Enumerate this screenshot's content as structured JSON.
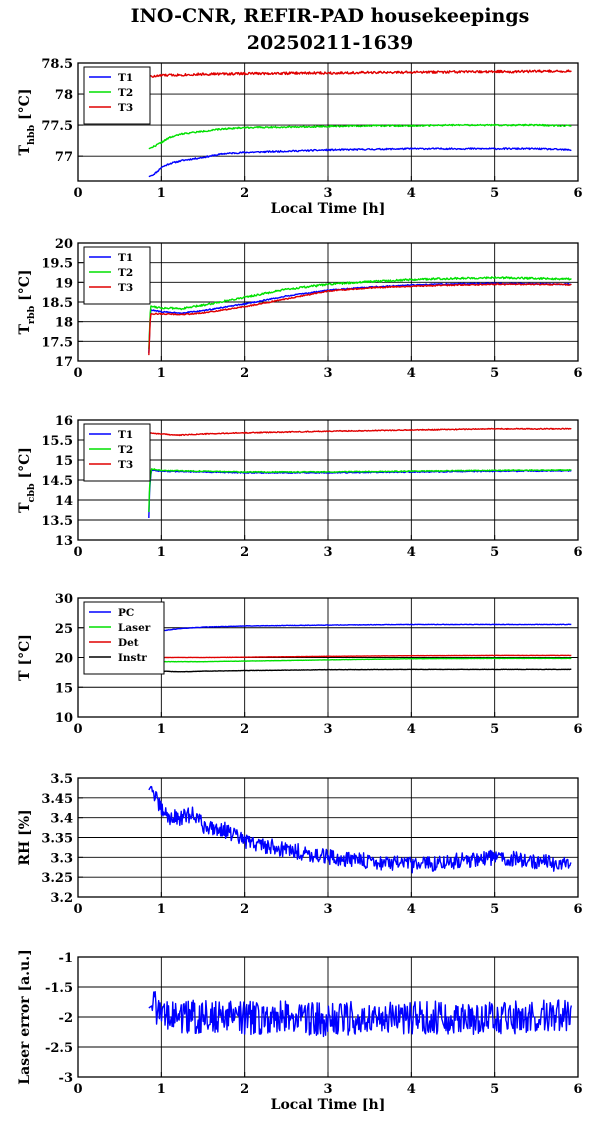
{
  "title_line1": "INO-CNR, REFIR-PAD housekeepings",
  "title_line2": "20250211-1639",
  "chart_data": [
    {
      "type": "line",
      "ylabel_main": "T",
      "ylabel_sub": "hbb",
      "ylabel_unit": " [°C]",
      "xlabel": "Local Time [h]",
      "xlim": [
        0,
        6
      ],
      "ylim": [
        76.6,
        78.5
      ],
      "xticks": [
        "0",
        "1",
        "2",
        "3",
        "4",
        "5",
        "6"
      ],
      "yticks": [
        {
          "v": 77,
          "label": "77"
        },
        {
          "v": 77.5,
          "label": "77.5"
        },
        {
          "v": 78,
          "label": "78"
        },
        {
          "v": 78.5,
          "label": "78.5"
        }
      ],
      "grid_y": [
        77,
        77.5,
        78
      ],
      "legend_placement": "top-left",
      "series": [
        {
          "name": "T1",
          "color": "#0000ff",
          "noise": 0.012,
          "seed": 11,
          "points": [
            [
              0.85,
              76.67
            ],
            [
              0.9,
              76.7
            ],
            [
              0.95,
              76.75
            ],
            [
              1.0,
              76.82
            ],
            [
              1.1,
              76.88
            ],
            [
              1.25,
              76.93
            ],
            [
              1.5,
              76.98
            ],
            [
              1.75,
              77.04
            ],
            [
              2.0,
              77.06
            ],
            [
              2.5,
              77.08
            ],
            [
              3.0,
              77.1
            ],
            [
              3.5,
              77.11
            ],
            [
              4.0,
              77.12
            ],
            [
              4.5,
              77.12
            ],
            [
              5.0,
              77.12
            ],
            [
              5.5,
              77.12
            ],
            [
              5.92,
              77.1
            ]
          ]
        },
        {
          "name": "T2",
          "color": "#00e000",
          "noise": 0.012,
          "seed": 22,
          "points": [
            [
              0.85,
              77.12
            ],
            [
              0.9,
              77.15
            ],
            [
              1.0,
              77.22
            ],
            [
              1.1,
              77.3
            ],
            [
              1.25,
              77.36
            ],
            [
              1.5,
              77.4
            ],
            [
              1.75,
              77.44
            ],
            [
              2.0,
              77.46
            ],
            [
              2.5,
              77.47
            ],
            [
              3.0,
              77.48
            ],
            [
              3.5,
              77.49
            ],
            [
              4.0,
              77.49
            ],
            [
              4.5,
              77.5
            ],
            [
              5.0,
              77.5
            ],
            [
              5.5,
              77.5
            ],
            [
              5.92,
              77.49
            ]
          ]
        },
        {
          "name": "T3",
          "color": "#e00000",
          "noise": 0.02,
          "seed": 33,
          "points": [
            [
              0.85,
              78.12
            ],
            [
              0.86,
              78.3
            ],
            [
              0.9,
              78.28
            ],
            [
              1.0,
              78.3
            ],
            [
              1.5,
              78.32
            ],
            [
              2.0,
              78.33
            ],
            [
              3.0,
              78.34
            ],
            [
              4.0,
              78.35
            ],
            [
              5.0,
              78.36
            ],
            [
              5.92,
              78.37
            ]
          ]
        }
      ]
    },
    {
      "type": "line",
      "ylabel_main": "T",
      "ylabel_sub": "rbb",
      "ylabel_unit": " [°C]",
      "xlabel": "",
      "xlim": [
        0,
        6
      ],
      "ylim": [
        17,
        20
      ],
      "xticks": [
        "0",
        "1",
        "2",
        "3",
        "4",
        "5",
        "6"
      ],
      "yticks": [
        {
          "v": 17,
          "label": "17"
        },
        {
          "v": 17.5,
          "label": "17.5"
        },
        {
          "v": 18,
          "label": "18"
        },
        {
          "v": 18.5,
          "label": "18.5"
        },
        {
          "v": 19,
          "label": "19"
        },
        {
          "v": 19.5,
          "label": "19.5"
        },
        {
          "v": 20,
          "label": "20"
        }
      ],
      "grid_y": [
        17.5,
        18,
        18.5,
        19,
        19.5
      ],
      "legend_placement": "top-left",
      "series": [
        {
          "name": "T1",
          "color": "#0000ff",
          "noise": 0.015,
          "seed": 44,
          "points": [
            [
              0.85,
              17.2
            ],
            [
              0.87,
              18.3
            ],
            [
              1.0,
              18.25
            ],
            [
              1.25,
              18.22
            ],
            [
              1.5,
              18.28
            ],
            [
              2.0,
              18.45
            ],
            [
              2.5,
              18.65
            ],
            [
              3.0,
              18.8
            ],
            [
              3.5,
              18.88
            ],
            [
              4.0,
              18.93
            ],
            [
              4.5,
              18.96
            ],
            [
              5.0,
              18.97
            ],
            [
              5.5,
              18.96
            ],
            [
              5.92,
              18.95
            ]
          ]
        },
        {
          "name": "T2",
          "color": "#00e000",
          "noise": 0.025,
          "seed": 55,
          "points": [
            [
              0.85,
              17.3
            ],
            [
              0.87,
              18.4
            ],
            [
              1.0,
              18.35
            ],
            [
              1.25,
              18.33
            ],
            [
              1.5,
              18.42
            ],
            [
              2.0,
              18.62
            ],
            [
              2.5,
              18.82
            ],
            [
              3.0,
              18.95
            ],
            [
              3.5,
              19.02
            ],
            [
              4.0,
              19.07
            ],
            [
              4.5,
              19.1
            ],
            [
              5.0,
              19.12
            ],
            [
              5.5,
              19.1
            ],
            [
              5.92,
              19.08
            ]
          ]
        },
        {
          "name": "T3",
          "color": "#e00000",
          "noise": 0.015,
          "seed": 66,
          "points": [
            [
              0.85,
              17.15
            ],
            [
              0.87,
              18.2
            ],
            [
              1.0,
              18.2
            ],
            [
              1.25,
              18.18
            ],
            [
              1.5,
              18.22
            ],
            [
              2.0,
              18.38
            ],
            [
              2.5,
              18.58
            ],
            [
              3.0,
              18.78
            ],
            [
              3.5,
              18.86
            ],
            [
              4.0,
              18.9
            ],
            [
              4.5,
              18.93
            ],
            [
              5.0,
              18.95
            ],
            [
              5.5,
              18.95
            ],
            [
              5.92,
              18.94
            ]
          ]
        }
      ]
    },
    {
      "type": "line",
      "ylabel_main": "T",
      "ylabel_sub": "cbb",
      "ylabel_unit": " [°C]",
      "xlabel": "",
      "xlim": [
        0,
        6
      ],
      "ylim": [
        13,
        16
      ],
      "xticks": [
        "0",
        "1",
        "2",
        "3",
        "4",
        "5",
        "6"
      ],
      "yticks": [
        {
          "v": 13,
          "label": "13"
        },
        {
          "v": 13.5,
          "label": "13.5"
        },
        {
          "v": 14,
          "label": "14"
        },
        {
          "v": 14.5,
          "label": "14.5"
        },
        {
          "v": 15,
          "label": "15"
        },
        {
          "v": 15.5,
          "label": "15.5"
        },
        {
          "v": 16,
          "label": "16"
        }
      ],
      "grid_y": [
        13.5,
        14,
        14.5,
        15,
        15.5
      ],
      "legend_placement": "top-left",
      "series": [
        {
          "name": "T1",
          "color": "#0000ff",
          "noise": 0.012,
          "seed": 77,
          "points": [
            [
              0.85,
              13.55
            ],
            [
              0.86,
              14.3
            ],
            [
              0.88,
              14.75
            ],
            [
              1.0,
              14.72
            ],
            [
              1.5,
              14.7
            ],
            [
              2.0,
              14.68
            ],
            [
              3.0,
              14.68
            ],
            [
              4.0,
              14.7
            ],
            [
              5.0,
              14.72
            ],
            [
              5.92,
              14.73
            ]
          ]
        },
        {
          "name": "T2",
          "color": "#00e000",
          "noise": 0.012,
          "seed": 88,
          "points": [
            [
              0.85,
              13.7
            ],
            [
              0.86,
              14.4
            ],
            [
              0.88,
              14.78
            ],
            [
              1.0,
              14.74
            ],
            [
              1.5,
              14.72
            ],
            [
              2.0,
              14.7
            ],
            [
              3.0,
              14.7
            ],
            [
              4.0,
              14.72
            ],
            [
              5.0,
              14.74
            ],
            [
              5.92,
              14.75
            ]
          ]
        },
        {
          "name": "T3",
          "color": "#e00000",
          "noise": 0.012,
          "seed": 99,
          "points": [
            [
              0.85,
              15.68
            ],
            [
              1.0,
              15.65
            ],
            [
              1.2,
              15.62
            ],
            [
              1.5,
              15.65
            ],
            [
              2.0,
              15.68
            ],
            [
              3.0,
              15.72
            ],
            [
              4.0,
              15.75
            ],
            [
              5.0,
              15.78
            ],
            [
              5.92,
              15.78
            ]
          ]
        }
      ]
    },
    {
      "type": "line",
      "ylabel_main": "T [°C]",
      "ylabel_sub": "",
      "ylabel_unit": "",
      "xlabel": "",
      "xlim": [
        0,
        6
      ],
      "ylim": [
        10,
        30
      ],
      "xticks": [
        "0",
        "1",
        "2",
        "3",
        "4",
        "5",
        "6"
      ],
      "yticks": [
        {
          "v": 10,
          "label": "10"
        },
        {
          "v": 15,
          "label": "15"
        },
        {
          "v": 20,
          "label": "20"
        },
        {
          "v": 25,
          "label": "25"
        },
        {
          "v": 30,
          "label": "30"
        }
      ],
      "grid_y": [
        15,
        20,
        25
      ],
      "legend_placement": "top-left",
      "series": [
        {
          "name": "PC",
          "color": "#0000ff",
          "noise": 0.04,
          "seed": 101,
          "points": [
            [
              0.9,
              23.8
            ],
            [
              1.0,
              24.5
            ],
            [
              1.25,
              24.9
            ],
            [
              1.5,
              25.1
            ],
            [
              2.0,
              25.3
            ],
            [
              3.0,
              25.45
            ],
            [
              4.0,
              25.55
            ],
            [
              5.0,
              25.55
            ],
            [
              5.92,
              25.55
            ]
          ]
        },
        {
          "name": "Laser",
          "color": "#00e000",
          "noise": 0.02,
          "seed": 102,
          "points": [
            [
              0.9,
              19.5
            ],
            [
              1.0,
              19.3
            ],
            [
              1.5,
              19.3
            ],
            [
              2.0,
              19.4
            ],
            [
              3.0,
              19.6
            ],
            [
              4.0,
              19.8
            ],
            [
              5.0,
              19.85
            ],
            [
              5.92,
              19.85
            ]
          ]
        },
        {
          "name": "Det",
          "color": "#e00000",
          "noise": 0.02,
          "seed": 103,
          "points": [
            [
              0.9,
              20.0
            ],
            [
              1.5,
              20.0
            ],
            [
              2.0,
              20.05
            ],
            [
              3.0,
              20.2
            ],
            [
              4.0,
              20.3
            ],
            [
              5.0,
              20.35
            ],
            [
              5.92,
              20.35
            ]
          ]
        },
        {
          "name": "Instr",
          "color": "#000000",
          "noise": 0.03,
          "seed": 104,
          "points": [
            [
              0.9,
              18.0
            ],
            [
              1.0,
              17.7
            ],
            [
              1.25,
              17.6
            ],
            [
              1.5,
              17.7
            ],
            [
              2.0,
              17.8
            ],
            [
              3.0,
              17.95
            ],
            [
              4.0,
              18.0
            ],
            [
              5.0,
              18.0
            ],
            [
              5.92,
              18.0
            ]
          ]
        }
      ]
    },
    {
      "type": "line",
      "ylabel_main": "RH [%]",
      "ylabel_sub": "",
      "ylabel_unit": "",
      "xlabel": "",
      "xlim": [
        0,
        6
      ],
      "ylim": [
        3.2,
        3.5
      ],
      "xticks": [
        "0",
        "1",
        "2",
        "3",
        "4",
        "5",
        "6"
      ],
      "yticks": [
        {
          "v": 3.2,
          "label": "3.2"
        },
        {
          "v": 3.25,
          "label": "3.25"
        },
        {
          "v": 3.3,
          "label": "3.3"
        },
        {
          "v": 3.35,
          "label": "3.35"
        },
        {
          "v": 3.4,
          "label": "3.4"
        },
        {
          "v": 3.45,
          "label": "3.45"
        },
        {
          "v": 3.5,
          "label": "3.5"
        }
      ],
      "grid_y": [
        3.25,
        3.3,
        3.35,
        3.4,
        3.45
      ],
      "legend_placement": "none",
      "series": [
        {
          "name": "",
          "color": "#0000ff",
          "noise": 0.02,
          "seed": 201,
          "points": [
            [
              0.85,
              3.47
            ],
            [
              0.88,
              3.48
            ],
            [
              0.95,
              3.44
            ],
            [
              1.0,
              3.42
            ],
            [
              1.1,
              3.4
            ],
            [
              1.25,
              3.4
            ],
            [
              1.4,
              3.41
            ],
            [
              1.5,
              3.38
            ],
            [
              1.75,
              3.37
            ],
            [
              2.0,
              3.34
            ],
            [
              2.5,
              3.32
            ],
            [
              3.0,
              3.3
            ],
            [
              3.5,
              3.29
            ],
            [
              4.0,
              3.28
            ],
            [
              4.5,
              3.29
            ],
            [
              5.0,
              3.3
            ],
            [
              5.5,
              3.29
            ],
            [
              5.92,
              3.28
            ]
          ]
        }
      ]
    },
    {
      "type": "line",
      "ylabel_main": "Laser error [a.u.]",
      "ylabel_sub": "",
      "ylabel_unit": "",
      "xlabel": "Local Time [h]",
      "xlim": [
        0,
        6
      ],
      "ylim": [
        -3,
        -1
      ],
      "xticks": [
        "0",
        "1",
        "2",
        "3",
        "4",
        "5",
        "6"
      ],
      "yticks": [
        {
          "v": -3,
          "label": "-3"
        },
        {
          "v": -2.5,
          "label": "-2.5"
        },
        {
          "v": -2,
          "label": "-2"
        },
        {
          "v": -1.5,
          "label": "-1.5"
        },
        {
          "v": -1,
          "label": "-1"
        }
      ],
      "grid_y": [
        -2.5,
        -2,
        -1.5
      ],
      "legend_placement": "none",
      "series": [
        {
          "name": "",
          "color": "#0000ff",
          "noise": 0.28,
          "seed": 301,
          "points": [
            [
              0.85,
              -1.85
            ],
            [
              0.9,
              -1.8
            ],
            [
              1.0,
              -2.0
            ],
            [
              1.5,
              -2.0
            ],
            [
              2.0,
              -2.02
            ],
            [
              2.5,
              -2.0
            ],
            [
              3.0,
              -2.05
            ],
            [
              3.5,
              -2.0
            ],
            [
              4.0,
              -2.02
            ],
            [
              4.5,
              -2.0
            ],
            [
              5.0,
              -2.02
            ],
            [
              5.5,
              -2.0
            ],
            [
              5.92,
              -1.95
            ]
          ]
        }
      ]
    }
  ]
}
